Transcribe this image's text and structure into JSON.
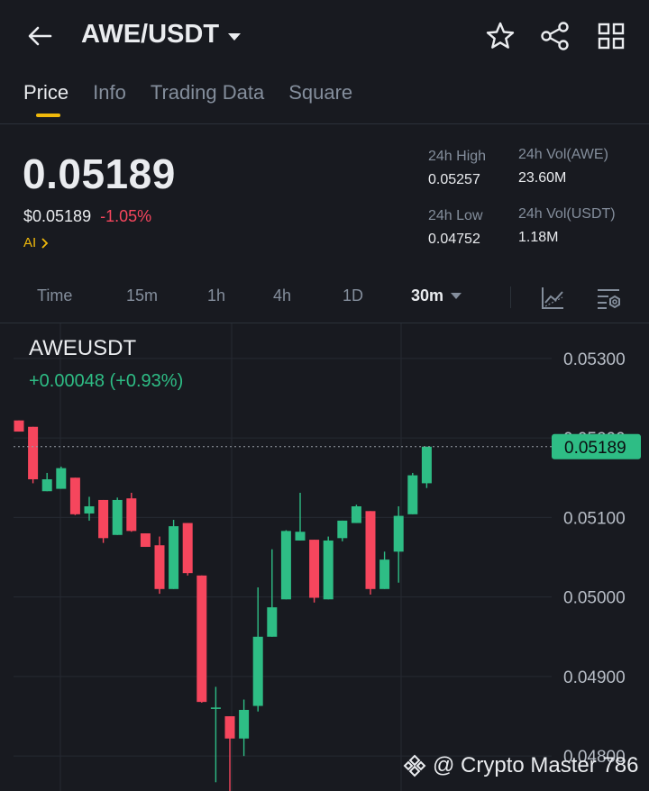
{
  "header": {
    "pair": "AWE/USDT",
    "icons": [
      "back-arrow-icon",
      "caret-down-icon",
      "star-icon",
      "share-icon",
      "grid-icon"
    ]
  },
  "tabs": [
    {
      "label": "Price",
      "active": true
    },
    {
      "label": "Info",
      "active": false
    },
    {
      "label": "Trading Data",
      "active": false
    },
    {
      "label": "Square",
      "active": false
    }
  ],
  "price": {
    "last": "0.05189",
    "usd": "$0.05189",
    "change": "-1.05%",
    "ai": "AI"
  },
  "stats": {
    "high_label": "24h High",
    "high_value": "0.05257",
    "low_label": "24h Low",
    "low_value": "0.04752",
    "vol_base_label": "24h Vol(AWE)",
    "vol_base_value": "23.60M",
    "vol_quote_label": "24h Vol(USDT)",
    "vol_quote_value": "1.18M"
  },
  "intervals": {
    "items": [
      "Time",
      "15m",
      "1h",
      "4h",
      "1D"
    ],
    "selected": "30m"
  },
  "chart": {
    "symbol": "AWEUSDT",
    "change": "+0.00048 (+0.93%)",
    "current_price_label": "0.05189",
    "watermark": "@ Crypto Master 786"
  },
  "colors": {
    "background": "#181a20",
    "up": "#2ebd85",
    "down": "#f6465d",
    "accent": "#f0b90b",
    "muted": "#848e9c"
  },
  "chart_data": {
    "type": "candlestick",
    "title": "AWEUSDT",
    "interval": "30m",
    "y_ticks": [
      "0.05300",
      "0.05200",
      "0.05100",
      "0.05000",
      "0.04900",
      "0.04800"
    ],
    "ylim": [
      0.04756,
      0.05344
    ],
    "current_price": 0.05189,
    "grid": true,
    "candles": [
      {
        "o": 0.05222,
        "h": 0.05222,
        "l": 0.05208,
        "c": 0.05208
      },
      {
        "o": 0.05214,
        "h": 0.05214,
        "l": 0.05143,
        "c": 0.05148
      },
      {
        "o": 0.05133,
        "h": 0.05156,
        "l": 0.05133,
        "c": 0.05148
      },
      {
        "o": 0.05136,
        "h": 0.05164,
        "l": 0.05136,
        "c": 0.05162
      },
      {
        "o": 0.0515,
        "h": 0.0515,
        "l": 0.05103,
        "c": 0.05104
      },
      {
        "o": 0.05105,
        "h": 0.05126,
        "l": 0.05096,
        "c": 0.05114
      },
      {
        "o": 0.05122,
        "h": 0.05122,
        "l": 0.05068,
        "c": 0.05074
      },
      {
        "o": 0.05078,
        "h": 0.05125,
        "l": 0.05078,
        "c": 0.05122
      },
      {
        "o": 0.05124,
        "h": 0.05131,
        "l": 0.05082,
        "c": 0.05083
      },
      {
        "o": 0.0508,
        "h": 0.0508,
        "l": 0.05063,
        "c": 0.05063
      },
      {
        "o": 0.05065,
        "h": 0.05076,
        "l": 0.05004,
        "c": 0.0501
      },
      {
        "o": 0.0501,
        "h": 0.05097,
        "l": 0.0501,
        "c": 0.05089
      },
      {
        "o": 0.05093,
        "h": 0.05093,
        "l": 0.05027,
        "c": 0.0503
      },
      {
        "o": 0.05027,
        "h": 0.05027,
        "l": 0.04867,
        "c": 0.04868
      },
      {
        "o": 0.04861,
        "h": 0.04887,
        "l": 0.04767,
        "c": 0.04861
      },
      {
        "o": 0.0485,
        "h": 0.0485,
        "l": 0.04753,
        "c": 0.04822
      },
      {
        "o": 0.04822,
        "h": 0.04871,
        "l": 0.048,
        "c": 0.04858
      },
      {
        "o": 0.04863,
        "h": 0.05012,
        "l": 0.04856,
        "c": 0.0495
      },
      {
        "o": 0.0495,
        "h": 0.0506,
        "l": 0.0495,
        "c": 0.04987
      },
      {
        "o": 0.04997,
        "h": 0.05084,
        "l": 0.04997,
        "c": 0.05083
      },
      {
        "o": 0.05071,
        "h": 0.05131,
        "l": 0.05071,
        "c": 0.05082
      },
      {
        "o": 0.05072,
        "h": 0.05072,
        "l": 0.04993,
        "c": 0.04999
      },
      {
        "o": 0.04997,
        "h": 0.05076,
        "l": 0.04997,
        "c": 0.05071
      },
      {
        "o": 0.05074,
        "h": 0.05096,
        "l": 0.0507,
        "c": 0.05096
      },
      {
        "o": 0.05093,
        "h": 0.05116,
        "l": 0.05093,
        "c": 0.05114
      },
      {
        "o": 0.05108,
        "h": 0.05108,
        "l": 0.05003,
        "c": 0.0501
      },
      {
        "o": 0.0501,
        "h": 0.05057,
        "l": 0.0501,
        "c": 0.05047
      },
      {
        "o": 0.05057,
        "h": 0.05114,
        "l": 0.05018,
        "c": 0.05102
      },
      {
        "o": 0.05104,
        "h": 0.05156,
        "l": 0.05104,
        "c": 0.05153
      },
      {
        "o": 0.05143,
        "h": 0.05189,
        "l": 0.05137,
        "c": 0.05189
      }
    ]
  }
}
